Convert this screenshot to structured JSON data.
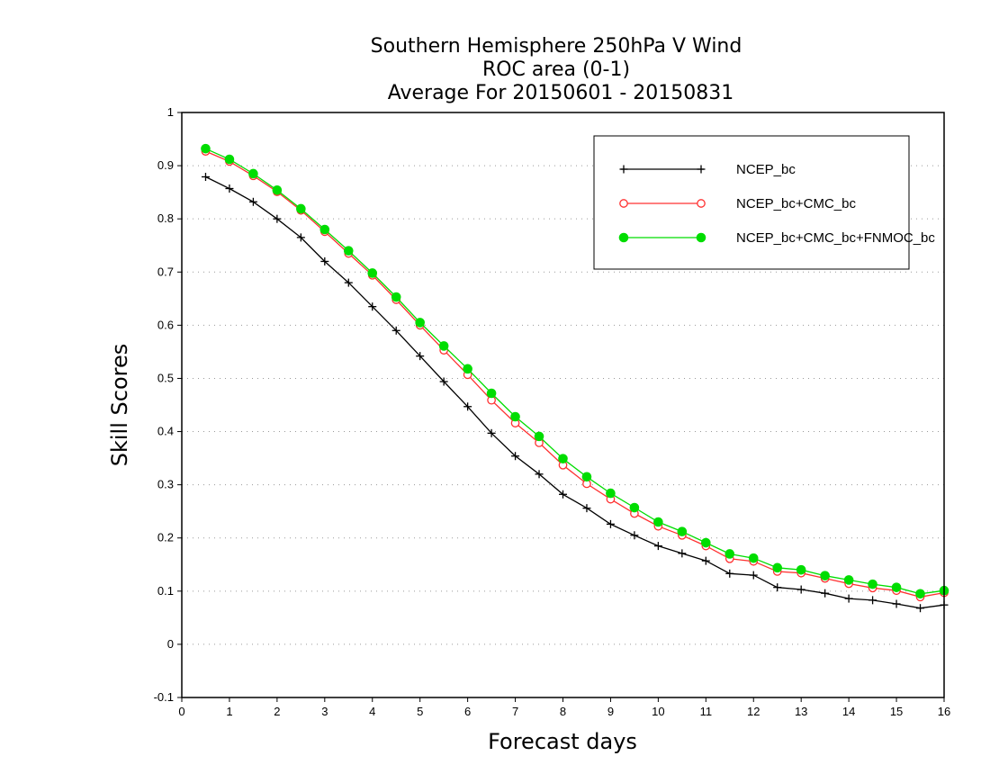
{
  "chart_data": {
    "type": "line",
    "title": [
      "Southern Hemisphere 250hPa V Wind",
      "ROC area (0-1)",
      "Average For 20150601 - 20150831"
    ],
    "xlabel": "Forecast days",
    "ylabel": "Skill Scores",
    "xlim": [
      0,
      16
    ],
    "ylim": [
      -0.1,
      1
    ],
    "xticks": [
      "0",
      "1",
      "2",
      "3",
      "4",
      "5",
      "6",
      "7",
      "8",
      "9",
      "10",
      "11",
      "12",
      "13",
      "14",
      "15",
      "16"
    ],
    "yticks": [
      "-0.1",
      "0",
      "0.1",
      "0.2",
      "0.3",
      "0.4",
      "0.5",
      "0.6",
      "0.7",
      "0.8",
      "0.9",
      "1"
    ],
    "grid": true,
    "legend_position": "top-right",
    "x": [
      0.5,
      1,
      1.5,
      2,
      2.5,
      3,
      3.5,
      4,
      4.5,
      5,
      5.5,
      6,
      6.5,
      7,
      7.5,
      8,
      8.5,
      9,
      9.5,
      10,
      10.5,
      11,
      11.5,
      12,
      12.5,
      13,
      13.5,
      14,
      14.5,
      15,
      15.5,
      16
    ],
    "series": [
      {
        "name": "NCEP_bc",
        "color": "#000000",
        "marker": "plus",
        "values": [
          0.879,
          0.857,
          0.832,
          0.8,
          0.765,
          0.72,
          0.68,
          0.635,
          0.59,
          0.542,
          0.494,
          0.447,
          0.397,
          0.354,
          0.32,
          0.282,
          0.256,
          0.226,
          0.205,
          0.185,
          0.171,
          0.157,
          0.133,
          0.13,
          0.107,
          0.103,
          0.096,
          0.086,
          0.083,
          0.076,
          0.068,
          0.074
        ]
      },
      {
        "name": "NCEP_bc+CMC_bc",
        "color": "#ff3030",
        "marker": "open-circle",
        "values": [
          0.927,
          0.908,
          0.881,
          0.851,
          0.816,
          0.776,
          0.735,
          0.694,
          0.648,
          0.6,
          0.553,
          0.507,
          0.459,
          0.416,
          0.379,
          0.337,
          0.302,
          0.273,
          0.246,
          0.222,
          0.205,
          0.185,
          0.161,
          0.156,
          0.137,
          0.134,
          0.124,
          0.114,
          0.106,
          0.101,
          0.089,
          0.097
        ]
      },
      {
        "name": "NCEP_bc+CMC_bc+FNMOC_bc",
        "color": "#00dd00",
        "marker": "filled-circle",
        "values": [
          0.932,
          0.912,
          0.885,
          0.854,
          0.819,
          0.78,
          0.74,
          0.698,
          0.653,
          0.605,
          0.561,
          0.518,
          0.472,
          0.428,
          0.391,
          0.349,
          0.315,
          0.284,
          0.257,
          0.23,
          0.212,
          0.191,
          0.17,
          0.162,
          0.144,
          0.14,
          0.129,
          0.121,
          0.113,
          0.107,
          0.095,
          0.101
        ]
      }
    ]
  }
}
